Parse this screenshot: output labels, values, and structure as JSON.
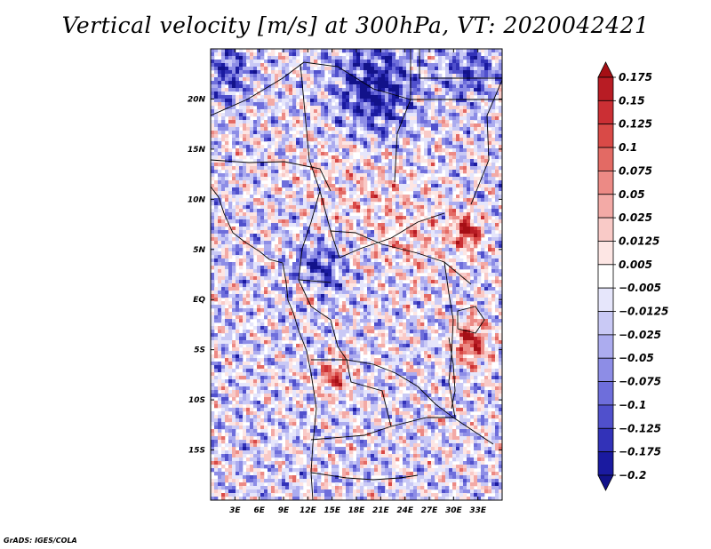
{
  "title": "Vertical velocity [m/s] at 300hPa, VT: 2020042421",
  "credit": "GrADS: IGES/COLA",
  "chart_data": {
    "type": "heatmap",
    "title": "Vertical velocity [m/s] at 300hPa, VT: 2020042421",
    "variable": "Vertical velocity",
    "units": "m/s",
    "level": "300hPa",
    "valid_time": "2020042421",
    "xlim": [
      0,
      36
    ],
    "ylim": [
      -20,
      25
    ],
    "x_ticks": [
      3,
      6,
      9,
      12,
      15,
      18,
      21,
      24,
      27,
      30,
      33
    ],
    "x_tick_labels": [
      "3E",
      "6E",
      "9E",
      "12E",
      "15E",
      "18E",
      "21E",
      "24E",
      "27E",
      "30E",
      "33E"
    ],
    "y_ticks": [
      20,
      15,
      10,
      5,
      0,
      -5,
      -10,
      -15
    ],
    "y_tick_labels": [
      "20N",
      "15N",
      "10N",
      "5N",
      "EQ",
      "5S",
      "10S",
      "15S"
    ],
    "colorbar": {
      "levels": [
        0.175,
        0.15,
        0.125,
        0.1,
        0.075,
        0.05,
        0.025,
        0.0125,
        0.005,
        -0.005,
        -0.0125,
        -0.025,
        -0.05,
        -0.075,
        -0.1,
        -0.125,
        -0.175,
        -0.2
      ],
      "labels": [
        "0.175",
        "0.15",
        "0.125",
        "0.1",
        "0.075",
        "0.05",
        "0.025",
        "0.0125",
        "0.005",
        "−0.005",
        "−0.0125",
        "−0.025",
        "−0.05",
        "−0.075",
        "−0.1",
        "−0.125",
        "−0.175",
        "−0.2"
      ],
      "colors": [
        "#a50f15",
        "#b81c24",
        "#cb2f34",
        "#d94a47",
        "#e36a64",
        "#ec8a85",
        "#f3aaa6",
        "#f9cac7",
        "#fde6e4",
        "#ffffff",
        "#e6e6fb",
        "#c9c9f5",
        "#acacef",
        "#8d8de6",
        "#6e6edb",
        "#5050cc",
        "#3232b8",
        "#1a1aa0",
        "#12128a"
      ],
      "extend": "both"
    },
    "field_summary": "Alternating fine-scale bands of upward (red) and downward (blue) motion over Africa 0-36E, 20S-25N; strongest ascent near 31-33E 7N and 31-33E 4S, strongest descent over Libya/Egypt ~18-22E 21N and Congo basin ~12-15E 3N."
  },
  "x_title": "",
  "y_title": "",
  "colors": {
    "up": "#cc2222",
    "down": "#2222cc",
    "neutral": "#ffffff",
    "coast": "#000000"
  }
}
